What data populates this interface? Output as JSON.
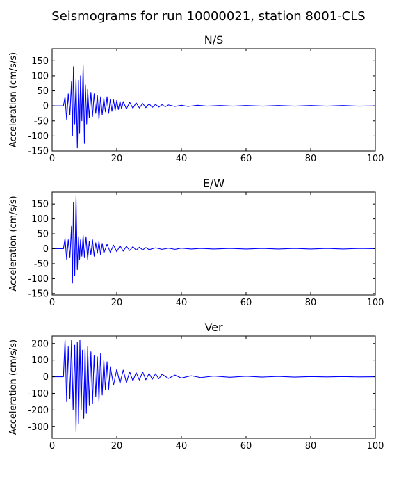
{
  "chart_data": {
    "title": "Seismograms for run 10000021, station 8001-CLS",
    "type": "line",
    "color": "#0000ff",
    "panels": [
      {
        "title": "N/S",
        "ylabel": "Acceleration (cm/s/s)",
        "xlim": [
          0,
          100
        ],
        "ylim": [
          -150,
          190
        ],
        "xticks": [
          0,
          20,
          40,
          60,
          80,
          100
        ],
        "yticks": [
          -150,
          -100,
          -50,
          0,
          50,
          100,
          150
        ],
        "x": [
          0,
          3.5,
          4.0,
          4.5,
          5.0,
          5.5,
          6.0,
          6.3,
          6.6,
          7.0,
          7.4,
          7.8,
          8.2,
          8.5,
          8.8,
          9.2,
          9.6,
          10.0,
          10.3,
          10.7,
          11.0,
          11.5,
          12.0,
          12.5,
          13.0,
          13.5,
          14.0,
          14.5,
          15.0,
          15.5,
          16.0,
          16.5,
          17.0,
          17.5,
          18.0,
          18.5,
          19.0,
          19.5,
          20.0,
          20.5,
          21.0,
          21.5,
          22.0,
          23.0,
          24.0,
          25.0,
          26.0,
          27.0,
          28.0,
          29.0,
          30.0,
          31.0,
          32.0,
          33.0,
          34.0,
          35.0,
          36.0,
          38.0,
          40.0,
          42.0,
          45.0,
          48.0,
          52.0,
          56.0,
          60.0,
          65.0,
          70.0,
          75.0,
          80.0,
          85.0,
          90.0,
          95.0,
          100.0
        ],
        "y": [
          0,
          0,
          30,
          -45,
          40,
          -30,
          80,
          -100,
          130,
          -60,
          90,
          -140,
          85,
          -90,
          100,
          -50,
          135,
          -125,
          70,
          -60,
          55,
          -40,
          45,
          -35,
          40,
          -25,
          35,
          -45,
          30,
          -30,
          25,
          -20,
          30,
          -25,
          22,
          -18,
          20,
          -15,
          18,
          -12,
          15,
          -10,
          14,
          -10,
          12,
          -8,
          10,
          -7,
          8,
          -6,
          7,
          -5,
          5,
          -4,
          4,
          -3,
          3,
          -2,
          2,
          -2,
          2,
          -1,
          1,
          -1,
          1,
          -1,
          1,
          -1,
          1,
          -1,
          1,
          -1,
          0
        ]
      },
      {
        "title": "E/W",
        "ylabel": "Acceleration (cm/s/s)",
        "xlim": [
          0,
          100
        ],
        "ylim": [
          -155,
          190
        ],
        "xticks": [
          0,
          20,
          40,
          60,
          80,
          100
        ],
        "yticks": [
          -150,
          -100,
          -50,
          0,
          50,
          100,
          150
        ],
        "x": [
          0,
          3.5,
          4.0,
          4.5,
          5.0,
          5.5,
          6.0,
          6.3,
          6.6,
          7.0,
          7.4,
          7.8,
          8.2,
          8.5,
          8.8,
          9.2,
          9.6,
          10.0,
          10.5,
          11.0,
          11.5,
          12.0,
          12.5,
          13.0,
          13.5,
          14.0,
          14.5,
          15.0,
          15.5,
          16.0,
          17.0,
          18.0,
          19.0,
          20.0,
          21.0,
          22.0,
          23.0,
          24.0,
          25.0,
          26.0,
          27.0,
          28.0,
          29.0,
          30.0,
          32.0,
          34.0,
          36.0,
          38.0,
          40.0,
          43.0,
          46.0,
          50.0,
          55.0,
          60.0,
          65.0,
          70.0,
          75.0,
          80.0,
          85.0,
          90.0,
          95.0,
          100.0
        ],
        "y": [
          0,
          0,
          35,
          -35,
          30,
          -30,
          75,
          -115,
          155,
          -90,
          175,
          -70,
          40,
          -35,
          30,
          -25,
          45,
          -30,
          40,
          -35,
          25,
          -20,
          30,
          -25,
          20,
          -15,
          25,
          -20,
          18,
          -15,
          15,
          -12,
          12,
          -10,
          10,
          -8,
          8,
          -6,
          7,
          -5,
          5,
          -4,
          4,
          -3,
          3,
          -2,
          2,
          -2,
          2,
          -1,
          1,
          -1,
          1,
          -1,
          1,
          -1,
          1,
          -1,
          1,
          -1,
          1,
          0
        ]
      },
      {
        "title": "Ver",
        "ylabel": "Acceleration (cm/s/s)",
        "xlim": [
          0,
          100
        ],
        "ylim": [
          -370,
          245
        ],
        "xticks": [
          0,
          20,
          40,
          60,
          80,
          100
        ],
        "yticks": [
          -300,
          -200,
          -100,
          0,
          100,
          200
        ],
        "x": [
          0,
          3.5,
          4.0,
          4.5,
          5.0,
          5.5,
          6.0,
          6.5,
          7.0,
          7.4,
          7.8,
          8.2,
          8.6,
          9.0,
          9.4,
          9.8,
          10.2,
          10.6,
          11.0,
          11.5,
          12.0,
          12.5,
          13.0,
          13.5,
          14.0,
          14.5,
          15.0,
          15.5,
          16.0,
          16.5,
          17.0,
          17.5,
          18.0,
          19.0,
          20.0,
          21.0,
          22.0,
          23.0,
          24.0,
          25.0,
          26.0,
          27.0,
          28.0,
          29.0,
          30.0,
          31.0,
          32.0,
          33.0,
          34.0,
          36.0,
          38.0,
          40.0,
          43.0,
          46.0,
          50.0,
          55.0,
          60.0,
          65.0,
          70.0,
          75.0,
          80.0,
          85.0,
          90.0,
          95.0,
          100.0
        ],
        "y": [
          0,
          0,
          225,
          -150,
          180,
          -130,
          220,
          -200,
          190,
          -330,
          210,
          -280,
          220,
          -200,
          160,
          -250,
          170,
          -220,
          180,
          -170,
          150,
          -160,
          130,
          -120,
          120,
          -150,
          140,
          -110,
          100,
          -80,
          90,
          -75,
          60,
          -50,
          45,
          -40,
          40,
          -35,
          30,
          -25,
          25,
          -20,
          30,
          -18,
          20,
          -15,
          18,
          -12,
          15,
          -10,
          10,
          -8,
          6,
          -5,
          4,
          -3,
          3,
          -2,
          2,
          -2,
          1,
          -1,
          1,
          -1,
          0
        ]
      }
    ]
  }
}
